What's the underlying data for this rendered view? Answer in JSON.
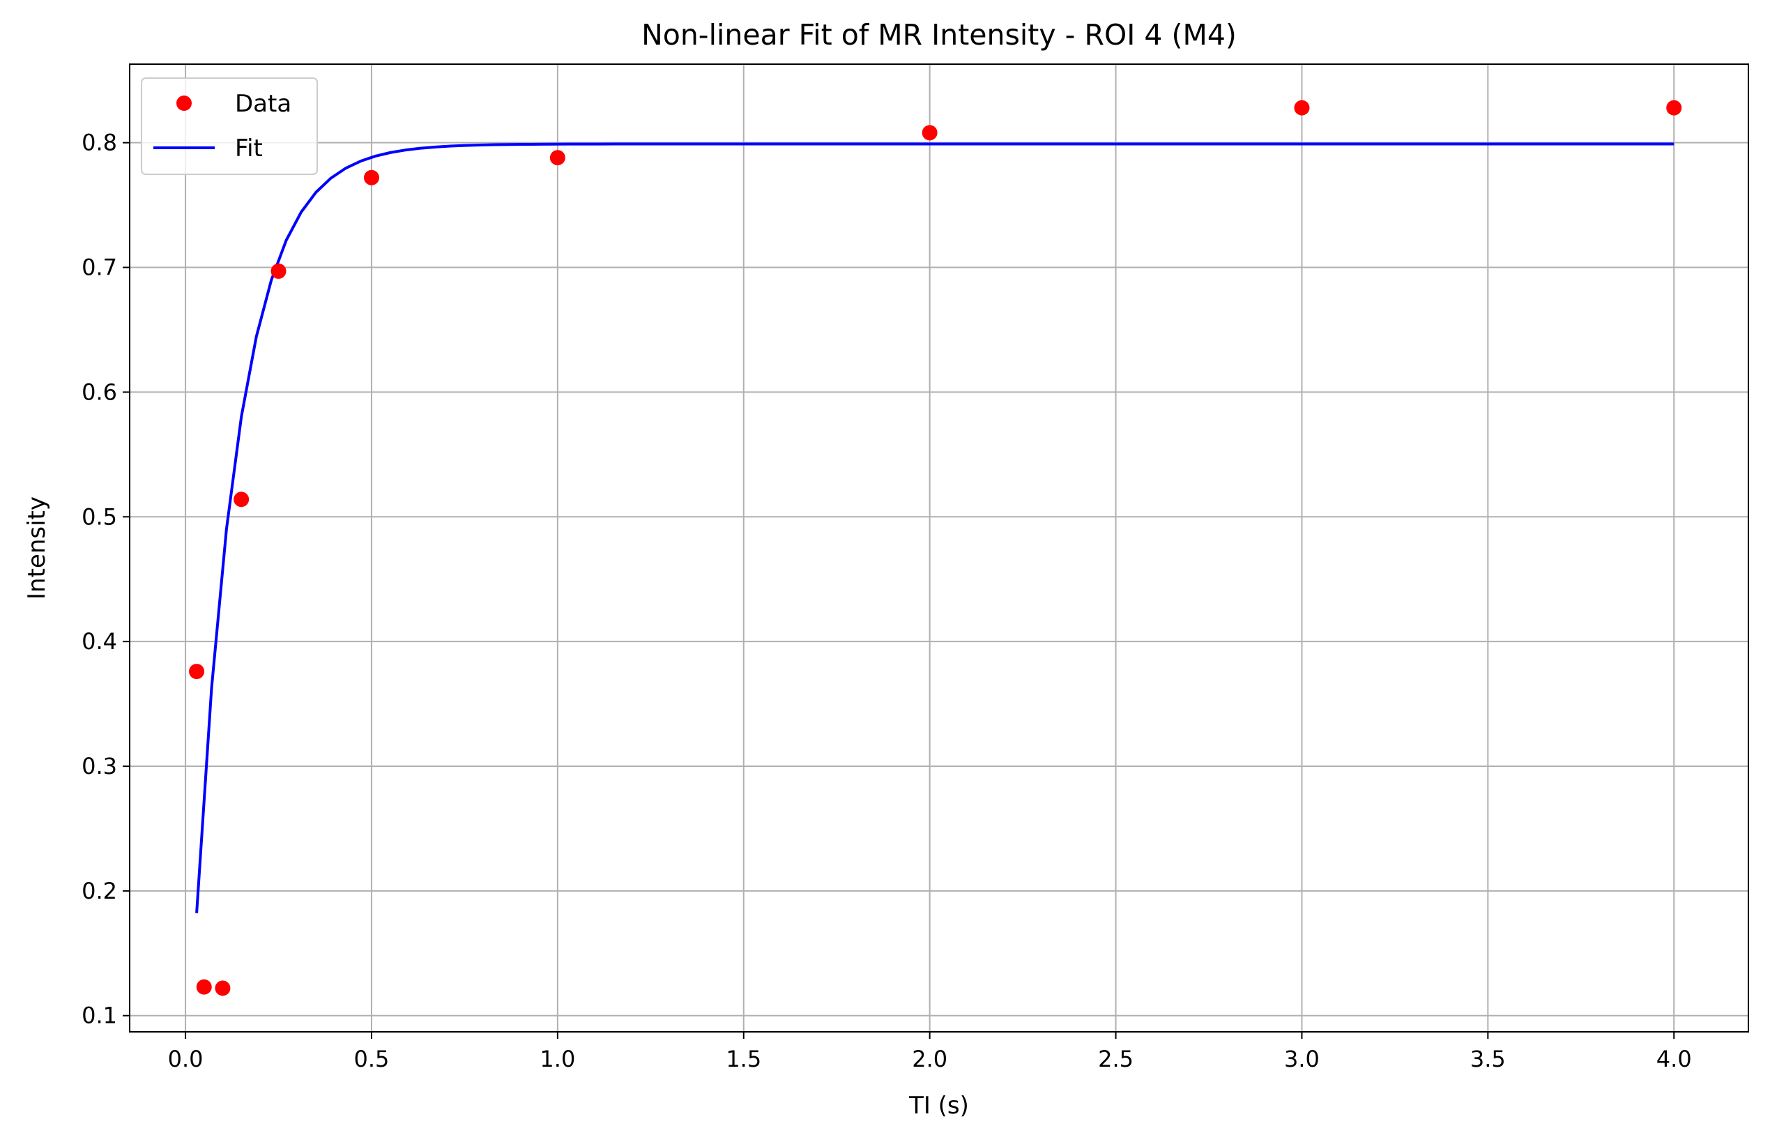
{
  "chart_data": {
    "type": "scatter",
    "title": "Non-linear Fit of MR Intensity - ROI 4 (M4)",
    "xlabel": "TI (s)",
    "ylabel": "Intensity",
    "xlim": [
      -0.15,
      4.2
    ],
    "ylim": [
      0.087,
      0.863
    ],
    "xticks": [
      0.0,
      0.5,
      1.0,
      1.5,
      2.0,
      2.5,
      3.0,
      3.5,
      4.0
    ],
    "xtick_labels": [
      "0.0",
      "0.5",
      "1.0",
      "1.5",
      "2.0",
      "2.5",
      "3.0",
      "3.5",
      "4.0"
    ],
    "yticks": [
      0.1,
      0.2,
      0.3,
      0.4,
      0.5,
      0.6,
      0.7,
      0.8
    ],
    "ytick_labels": [
      "0.1",
      "0.2",
      "0.3",
      "0.4",
      "0.5",
      "0.6",
      "0.7",
      "0.8"
    ],
    "grid": true,
    "legend_position": "top-left",
    "series": [
      {
        "name": "Data",
        "kind": "scatter",
        "color": "#ff0000",
        "x": [
          0.03,
          0.05,
          0.1,
          0.15,
          0.25,
          0.5,
          1.0,
          2.0,
          3.0,
          4.0
        ],
        "y": [
          0.376,
          0.123,
          0.122,
          0.514,
          0.697,
          0.772,
          0.788,
          0.808,
          0.828,
          0.828
        ]
      },
      {
        "name": "Fit",
        "kind": "line",
        "color": "#0000ff",
        "model": "M = M0 * (1 - exp(-TI / T1))",
        "params": {
          "M0": 0.799,
          "T1": 0.1159
        },
        "x_range": [
          0.03,
          4.0
        ]
      }
    ]
  }
}
